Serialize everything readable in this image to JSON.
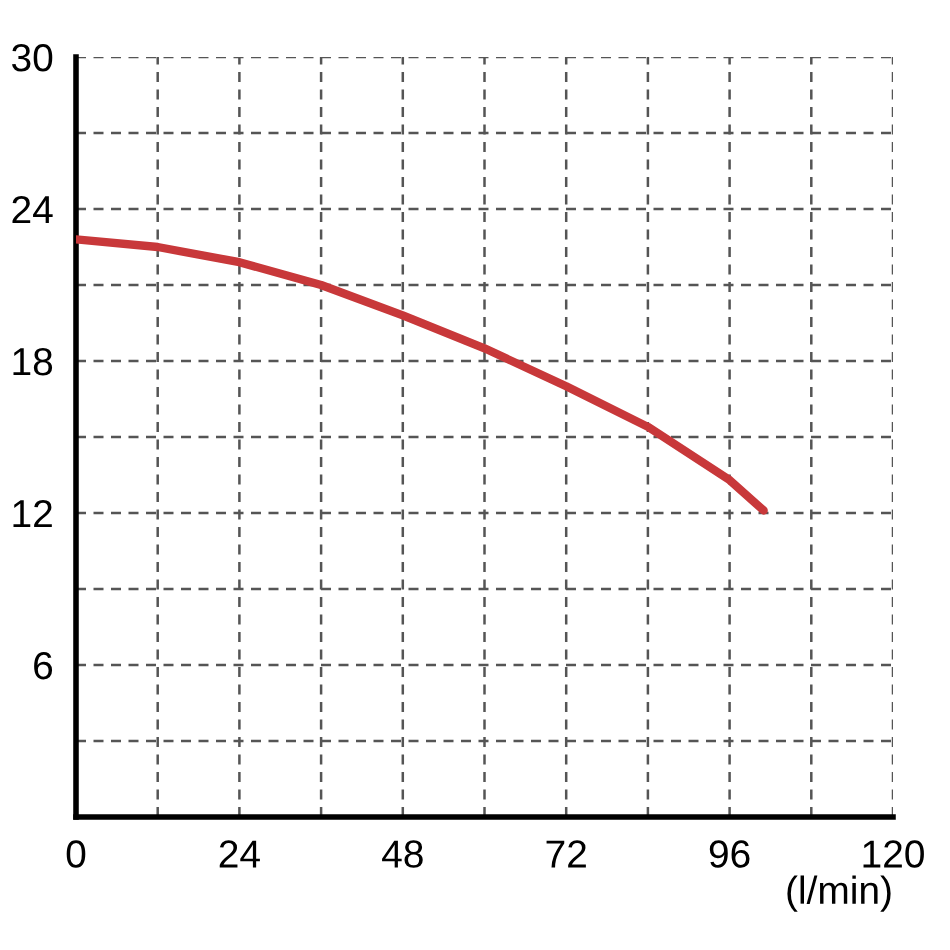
{
  "chart_data": {
    "type": "line",
    "xlabel": "(l/min)",
    "x": [
      0,
      12,
      24,
      36,
      48,
      60,
      72,
      84,
      96,
      101
    ],
    "series": [
      {
        "color": "#c8383a",
        "values": [
          22.8,
          22.5,
          21.9,
          21.0,
          19.8,
          18.5,
          17.0,
          15.4,
          13.3,
          12.1
        ]
      }
    ],
    "xlim": [
      0,
      120
    ],
    "ylim": [
      0,
      30
    ],
    "xticks": [
      0,
      {
        "value": 12,
        "label": null
      },
      24,
      {
        "value": 36,
        "label": null
      },
      48,
      {
        "value": 60,
        "label": null
      },
      72,
      {
        "value": 84,
        "label": null
      },
      96,
      {
        "value": 108,
        "label": null
      },
      120
    ],
    "yticks": [
      {
        "value": 3,
        "label": null
      },
      6,
      {
        "value": 9,
        "label": null
      },
      12,
      {
        "value": 15,
        "label": null
      },
      18,
      {
        "value": 21,
        "label": null
      },
      24,
      {
        "value": 27,
        "label": null
      },
      30
    ],
    "grid": true,
    "marker": "none",
    "line_style": "solid"
  }
}
